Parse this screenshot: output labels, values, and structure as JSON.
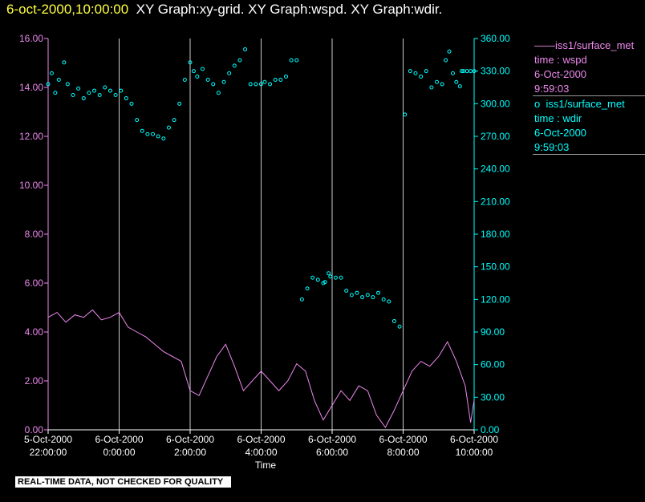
{
  "header": {
    "timestamp": "6-oct-2000,10:00:00",
    "graphs": "XY Graph:xy-grid.  XY Graph:wspd.  XY Graph:wdir."
  },
  "legend": [
    {
      "marker": "——",
      "lines": [
        "iss1/surface_met",
        "time : wspd",
        "6-Oct-2000",
        "9:59:03"
      ]
    },
    {
      "marker": "o",
      "lines": [
        "iss1/surface_met",
        "time : wdir",
        "6-Oct-2000",
        "9:59:03"
      ]
    }
  ],
  "banner": "REAL-TIME DATA, NOT CHECKED FOR QUALITY",
  "colors": {
    "wspd": "#ee88ee",
    "wdir": "#00ffff",
    "grid": "#cccccc",
    "background": "#000000"
  },
  "chart_data": {
    "type": "line",
    "xlabel": "Time",
    "x_ticks": [
      {
        "value": 0,
        "line1": "5-Oct-2000",
        "line2": "22:00:00"
      },
      {
        "value": 2,
        "line1": "6-Oct-2000",
        "line2": "0:00:00"
      },
      {
        "value": 4,
        "line1": "6-Oct-2000",
        "line2": "2:00:00"
      },
      {
        "value": 6,
        "line1": "6-Oct-2000",
        "line2": "4:00:00"
      },
      {
        "value": 8,
        "line1": "6-Oct-2000",
        "line2": "6:00:00"
      },
      {
        "value": 10,
        "line1": "6-Oct-2000",
        "line2": "8:00:00"
      },
      {
        "value": 12,
        "line1": "6-Oct-2000",
        "line2": "10:00:00"
      }
    ],
    "xlim": [
      0,
      12
    ],
    "y_left": {
      "ylim": [
        0,
        16
      ],
      "ticks": [
        "0.00",
        "2.00",
        "4.00",
        "6.00",
        "8.00",
        "10.00",
        "12.00",
        "14.00",
        "16.00"
      ]
    },
    "y_right": {
      "ylim": [
        0,
        360
      ],
      "ticks": [
        "0.00",
        "30.00",
        "60.00",
        "90.00",
        "120.00",
        "150.00",
        "180.00",
        "210.00",
        "240.00",
        "270.00",
        "300.00",
        "330.00",
        "360.00"
      ]
    },
    "series": [
      {
        "name": "wspd",
        "axis": "left",
        "style": "line",
        "x": [
          0,
          0.25,
          0.5,
          0.75,
          1.0,
          1.25,
          1.5,
          1.75,
          2.0,
          2.25,
          2.5,
          2.75,
          3.0,
          3.25,
          3.5,
          3.75,
          4.0,
          4.25,
          4.5,
          4.75,
          5.0,
          5.25,
          5.5,
          5.75,
          6.0,
          6.25,
          6.5,
          6.75,
          7.0,
          7.25,
          7.5,
          7.75,
          8.0,
          8.25,
          8.5,
          8.75,
          9.0,
          9.25,
          9.5,
          9.75,
          10.0,
          10.25,
          10.5,
          10.75,
          11.0,
          11.25,
          11.5,
          11.75,
          11.9,
          12.0
        ],
        "y": [
          4.6,
          4.8,
          4.4,
          4.7,
          4.6,
          4.9,
          4.5,
          4.6,
          4.8,
          4.2,
          4.0,
          3.8,
          3.5,
          3.2,
          3.0,
          2.8,
          1.6,
          1.4,
          2.2,
          3.0,
          3.5,
          2.6,
          1.6,
          2.0,
          2.4,
          2.0,
          1.6,
          2.0,
          2.7,
          2.4,
          1.2,
          0.4,
          1.0,
          1.6,
          1.2,
          1.8,
          1.6,
          0.6,
          0.1,
          0.8,
          1.6,
          2.4,
          2.8,
          2.6,
          3.0,
          3.6,
          2.8,
          1.8,
          0.3,
          1.2
        ]
      },
      {
        "name": "wdir",
        "axis": "right",
        "style": "points",
        "x": [
          0,
          0.1,
          0.2,
          0.3,
          0.45,
          0.55,
          0.7,
          0.85,
          1.0,
          1.15,
          1.3,
          1.45,
          1.6,
          1.75,
          1.9,
          2.05,
          2.2,
          2.35,
          2.5,
          2.65,
          2.8,
          2.95,
          3.1,
          3.25,
          3.4,
          3.55,
          3.7,
          3.85,
          4.0,
          4.1,
          4.2,
          4.35,
          4.5,
          4.65,
          4.8,
          4.95,
          5.1,
          5.25,
          5.4,
          5.55,
          5.7,
          5.85,
          6.0,
          6.1,
          6.25,
          6.4,
          6.55,
          6.7,
          6.85,
          7.0,
          7.15,
          7.3,
          7.45,
          7.6,
          7.75,
          7.8,
          7.9,
          7.95,
          8.1,
          8.25,
          8.4,
          8.55,
          8.7,
          8.85,
          9.0,
          9.15,
          9.3,
          9.45,
          9.6,
          9.75,
          9.9,
          10.05,
          10.2,
          10.35,
          10.5,
          10.65,
          10.8,
          10.95,
          11.1,
          11.2,
          11.3,
          11.4,
          11.5,
          11.6,
          11.65,
          11.7,
          11.8,
          11.9,
          12.0
        ],
        "y": [
          318,
          328,
          310,
          322,
          338,
          318,
          308,
          314,
          305,
          310,
          312,
          308,
          315,
          312,
          308,
          312,
          305,
          300,
          285,
          275,
          272,
          272,
          270,
          268,
          278,
          285,
          300,
          322,
          338,
          330,
          325,
          332,
          322,
          318,
          310,
          320,
          328,
          335,
          340,
          350,
          318,
          318,
          318,
          320,
          318,
          322,
          322,
          325,
          340,
          340,
          120,
          130,
          140,
          138,
          135,
          136,
          144,
          141,
          140,
          140,
          128,
          124,
          126,
          122,
          124,
          122,
          126,
          120,
          118,
          100,
          95,
          290,
          330,
          328,
          325,
          330,
          315,
          320,
          318,
          340,
          348,
          328,
          320,
          316,
          330,
          330,
          330,
          330,
          330
        ]
      }
    ]
  }
}
